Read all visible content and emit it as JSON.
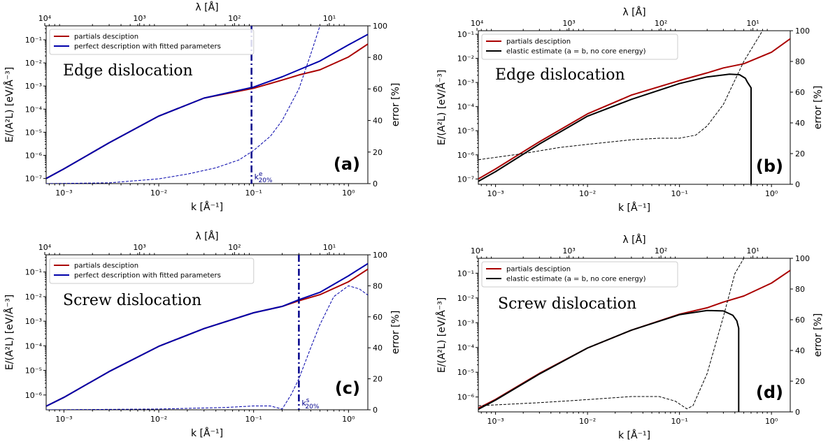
{
  "chart_data": [
    {
      "id": "a",
      "type": "line",
      "panel_label": "(a)",
      "annotation": "Edge dislocation",
      "xlabel": "k [Å⁻¹]",
      "ylabel": "E/(A²L) [eV/Å⁻³]",
      "ylabel_right": "error [%]",
      "top_xlabel": "λ [Å]",
      "xscale": "log",
      "yscale": "log",
      "xlim": [
        0.00065,
        1.6
      ],
      "ylim": [
        6e-08,
        0.4
      ],
      "y2lim": [
        0,
        100
      ],
      "x_ticks": [
        "10⁻³",
        "10⁻²",
        "10⁻¹",
        "10⁰"
      ],
      "y_ticks": [
        "10⁻⁷",
        "10⁻⁶",
        "10⁻⁵",
        "10⁻⁴",
        "10⁻³",
        "10⁻²",
        "10⁻¹"
      ],
      "y2_ticks": [
        "0",
        "20",
        "40",
        "60",
        "80",
        "100"
      ],
      "top_ticks": [
        "10⁴",
        "10³",
        "10²",
        "10¹"
      ],
      "legend_position": "top-left",
      "series": [
        {
          "name": "partials desciption",
          "color": "#aa0000",
          "axis": "left",
          "style": "solid",
          "x": [
            0.00065,
            0.001,
            0.003,
            0.01,
            0.03,
            0.1,
            0.2,
            0.3,
            0.5,
            1.0,
            1.6
          ],
          "y": [
            1e-07,
            2.6e-07,
            3.5e-06,
            5e-05,
            0.0003,
            0.0008,
            0.0018,
            0.003,
            0.005,
            0.018,
            0.065
          ]
        },
        {
          "name": "perfect description with fitted parameters",
          "color": "#0000aa",
          "axis": "left",
          "style": "solid",
          "x": [
            0.00065,
            0.001,
            0.003,
            0.01,
            0.03,
            0.1,
            0.2,
            0.3,
            0.5,
            1.0,
            1.6
          ],
          "y": [
            1e-07,
            2.6e-07,
            3.5e-06,
            5e-05,
            0.0003,
            0.0009,
            0.0025,
            0.005,
            0.012,
            0.06,
            0.17
          ]
        },
        {
          "name": "",
          "color": "#0000aa",
          "axis": "right",
          "style": "dashed",
          "x": [
            0.00065,
            0.003,
            0.01,
            0.02,
            0.04,
            0.07,
            0.1,
            0.15,
            0.2,
            0.3,
            0.4,
            0.5
          ],
          "y": [
            0,
            0.5,
            3,
            6,
            10,
            15,
            21,
            30,
            40,
            60,
            82,
            100
          ]
        }
      ],
      "vline": {
        "x": 0.095,
        "label": "k",
        "label_sup": "e",
        "label_sub": "20%",
        "color": "#00008b"
      }
    },
    {
      "id": "b",
      "type": "line",
      "panel_label": "(b)",
      "annotation": "Edge dislocation",
      "xlabel": "k [Å⁻¹]",
      "ylabel": "E/(A²L) [eV/Å⁻³]",
      "ylabel_right": "error [%]",
      "top_xlabel": "λ [Å]",
      "xscale": "log",
      "yscale": "log",
      "xlim": [
        0.00065,
        1.6
      ],
      "ylim": [
        6e-08,
        0.14
      ],
      "y2lim": [
        0,
        100
      ],
      "x_ticks": [
        "10⁻³",
        "10⁻²",
        "10⁻¹",
        "10⁰"
      ],
      "y_ticks": [
        "10⁻⁷",
        "10⁻⁶",
        "10⁻⁵",
        "10⁻⁴",
        "10⁻³",
        "10⁻²",
        "10⁻¹"
      ],
      "y2_ticks": [
        "0",
        "20",
        "40",
        "60",
        "80",
        "100"
      ],
      "top_ticks": [
        "10⁴",
        "10³",
        "10²",
        "10¹"
      ],
      "legend_position": "top-left",
      "series": [
        {
          "name": "partials desciption",
          "color": "#aa0000",
          "axis": "left",
          "style": "solid",
          "x": [
            0.00065,
            0.001,
            0.003,
            0.01,
            0.03,
            0.1,
            0.2,
            0.3,
            0.5,
            1.0,
            1.6
          ],
          "y": [
            1e-07,
            2.6e-07,
            3.5e-06,
            5e-05,
            0.0003,
            0.0012,
            0.0025,
            0.004,
            0.006,
            0.018,
            0.065
          ]
        },
        {
          "name": "elastic estimate (a = b, no core energy)",
          "color": "#000000",
          "axis": "left",
          "style": "solid",
          "x": [
            0.00065,
            0.001,
            0.003,
            0.01,
            0.03,
            0.1,
            0.2,
            0.35,
            0.45,
            0.52,
            0.55,
            0.6,
            0.6
          ],
          "y": [
            8e-08,
            2e-07,
            2.8e-06,
            4e-05,
            0.0002,
            0.0009,
            0.0017,
            0.0022,
            0.0021,
            0.0015,
            0.001,
            0.0006,
            6e-08
          ]
        },
        {
          "name": "",
          "color": "#000000",
          "axis": "right",
          "style": "dashed",
          "x": [
            0.00065,
            0.002,
            0.005,
            0.01,
            0.03,
            0.06,
            0.1,
            0.15,
            0.2,
            0.3,
            0.5,
            0.8
          ],
          "y": [
            16,
            20,
            24,
            26,
            29,
            30,
            30,
            32,
            38,
            52,
            80,
            100
          ]
        }
      ]
    },
    {
      "id": "c",
      "type": "line",
      "panel_label": "(c)",
      "annotation": "Screw dislocation",
      "xlabel": "k [Å⁻¹]",
      "ylabel": "E/(A²L) [eV/Å⁻³]",
      "ylabel_right": "error [%]",
      "top_xlabel": "λ [Å]",
      "xscale": "log",
      "yscale": "log",
      "xlim": [
        0.00065,
        1.6
      ],
      "ylim": [
        2.5e-07,
        0.5
      ],
      "y2lim": [
        0,
        100
      ],
      "x_ticks": [
        "10⁻³",
        "10⁻²",
        "10⁻¹",
        "10⁰"
      ],
      "y_ticks": [
        "10⁻⁶",
        "10⁻⁵",
        "10⁻⁴",
        "10⁻³",
        "10⁻²",
        "10⁻¹"
      ],
      "y2_ticks": [
        "0",
        "20",
        "40",
        "60",
        "80",
        "100"
      ],
      "top_ticks": [
        "10⁴",
        "10³",
        "10²",
        "10¹"
      ],
      "legend_position": "top-left",
      "series": [
        {
          "name": "partials desciption",
          "color": "#aa0000",
          "axis": "left",
          "style": "solid",
          "x": [
            0.00065,
            0.001,
            0.003,
            0.01,
            0.03,
            0.1,
            0.2,
            0.3,
            0.5,
            1.0,
            1.6
          ],
          "y": [
            3.5e-07,
            8e-07,
            9e-06,
            9.5e-05,
            0.0005,
            0.0022,
            0.004,
            0.0068,
            0.012,
            0.04,
            0.13
          ]
        },
        {
          "name": "perfect description with fitted parameters",
          "color": "#0000aa",
          "axis": "left",
          "style": "solid",
          "x": [
            0.00065,
            0.001,
            0.003,
            0.01,
            0.03,
            0.1,
            0.2,
            0.3,
            0.5,
            1.0,
            1.6
          ],
          "y": [
            3.5e-07,
            8e-07,
            9e-06,
            9.5e-05,
            0.0005,
            0.0022,
            0.004,
            0.0075,
            0.015,
            0.07,
            0.22
          ]
        },
        {
          "name": "",
          "color": "#0000aa",
          "axis": "right",
          "style": "dashed",
          "x": [
            0.00065,
            0.01,
            0.05,
            0.1,
            0.15,
            0.2,
            0.25,
            0.3,
            0.4,
            0.5,
            0.7,
            1.0,
            1.3,
            1.6
          ],
          "y": [
            0,
            0.5,
            1.5,
            2.5,
            2.5,
            0.5,
            10,
            20,
            40,
            55,
            73,
            80,
            78,
            74
          ]
        }
      ],
      "vline": {
        "x": 0.3,
        "label": "k",
        "label_sup": "s",
        "label_sub": "20%",
        "color": "#00008b"
      }
    },
    {
      "id": "d",
      "type": "line",
      "panel_label": "(d)",
      "annotation": "Screw dislocation",
      "xlabel": "k [Å⁻¹]",
      "ylabel": "E/(A²L) [eV/Å⁻³]",
      "ylabel_right": "error [%]",
      "top_xlabel": "λ [Å]",
      "xscale": "log",
      "yscale": "log",
      "xlim": [
        0.00065,
        1.6
      ],
      "ylim": [
        2.5e-07,
        0.4
      ],
      "y2lim": [
        0,
        100
      ],
      "x_ticks": [
        "10⁻³",
        "10⁻²",
        "10⁻¹",
        "10⁰"
      ],
      "y_ticks": [
        "10⁻⁶",
        "10⁻⁵",
        "10⁻⁴",
        "10⁻³",
        "10⁻²",
        "10⁻¹"
      ],
      "y2_ticks": [
        "0",
        "20",
        "40",
        "60",
        "80",
        "100"
      ],
      "top_ticks": [
        "10⁴",
        "10³",
        "10²",
        "10¹"
      ],
      "legend_position": "top-left",
      "series": [
        {
          "name": "partials desciption",
          "color": "#aa0000",
          "axis": "left",
          "style": "solid",
          "x": [
            0.00065,
            0.001,
            0.003,
            0.01,
            0.03,
            0.1,
            0.2,
            0.3,
            0.5,
            1.0,
            1.6
          ],
          "y": [
            3.5e-07,
            8e-07,
            9e-06,
            9.5e-05,
            0.0005,
            0.0022,
            0.004,
            0.0068,
            0.012,
            0.04,
            0.13
          ]
        },
        {
          "name": "elastic estimate (a = b, no core energy)",
          "color": "#000000",
          "axis": "left",
          "style": "solid",
          "x": [
            0.00065,
            0.001,
            0.003,
            0.01,
            0.03,
            0.1,
            0.2,
            0.3,
            0.38,
            0.42,
            0.44,
            0.44
          ],
          "y": [
            3.2e-07,
            7.5e-07,
            8.5e-06,
            9.5e-05,
            0.0005,
            0.0021,
            0.0031,
            0.003,
            0.002,
            0.0012,
            0.0006,
            2.5e-07
          ]
        },
        {
          "name": "",
          "color": "#000000",
          "axis": "right",
          "style": "dashed",
          "x": [
            0.00065,
            0.003,
            0.01,
            0.03,
            0.06,
            0.09,
            0.12,
            0.14,
            0.2,
            0.3,
            0.4,
            0.5
          ],
          "y": [
            4,
            6,
            8,
            10,
            10,
            7,
            2,
            4,
            25,
            62,
            90,
            100
          ]
        }
      ]
    }
  ]
}
